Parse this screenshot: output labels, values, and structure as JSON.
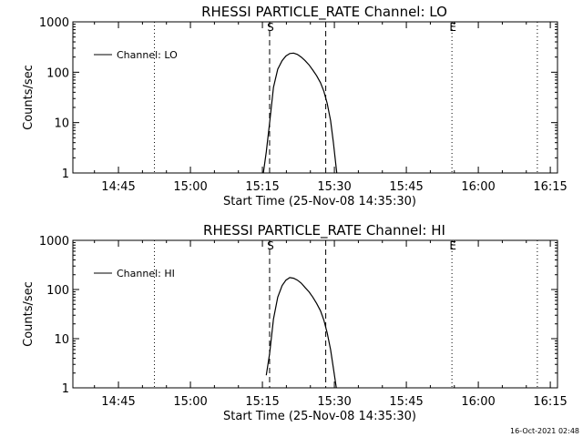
{
  "timestamp": "16-Oct-2021 02:48",
  "chart_data": [
    {
      "type": "line",
      "title": "RHESSI PARTICLE_RATE Channel: LO",
      "xlabel": "Start Time (25-Nov-08 14:35:30)",
      "ylabel": "Counts/sec",
      "yscale": "log",
      "ylim": [
        1,
        1000
      ],
      "xlim_minutes": [
        0,
        101
      ],
      "x_ticks": [
        {
          "label": "14:45",
          "minutes": 9.5
        },
        {
          "label": "15:00",
          "minutes": 24.5
        },
        {
          "label": "15:15",
          "minutes": 39.5
        },
        {
          "label": "15:30",
          "minutes": 54.5
        },
        {
          "label": "15:45",
          "minutes": 69.5
        },
        {
          "label": "16:00",
          "minutes": 84.5
        },
        {
          "label": "16:15",
          "minutes": 99.5
        }
      ],
      "y_ticks": [
        {
          "label": "1",
          "value": 1
        },
        {
          "label": "10",
          "value": 10
        },
        {
          "label": "100",
          "value": 100
        },
        {
          "label": "1000",
          "value": 1000
        }
      ],
      "legend": {
        "label": "Channel: LO",
        "position": "top-left"
      },
      "markers": [
        {
          "label": "S",
          "minutes": 41.0,
          "style": "dashed"
        },
        {
          "label": "",
          "minutes": 52.7,
          "style": "dashed"
        },
        {
          "label": "E",
          "minutes": 79.0,
          "style": "dotted"
        },
        {
          "label": "",
          "minutes": 17.0,
          "style": "dotted"
        },
        {
          "label": "",
          "minutes": 96.8,
          "style": "dotted"
        }
      ],
      "series": [
        {
          "name": "Channel: LO",
          "x_minutes": [
            39.7,
            40.3,
            41.0,
            41.8,
            42.7,
            43.6,
            44.4,
            45.2,
            46.0,
            46.8,
            47.6,
            48.4,
            49.2,
            50.0,
            50.8,
            51.6,
            52.3,
            53.0,
            53.7,
            54.3,
            55.0
          ],
          "values": [
            1.0,
            2.6,
            10.0,
            50,
            115,
            170,
            210,
            235,
            240,
            225,
            200,
            170,
            140,
            110,
            85,
            62,
            42,
            24,
            11,
            4,
            1.0
          ]
        }
      ]
    },
    {
      "type": "line",
      "title": "RHESSI PARTICLE_RATE Channel: HI",
      "xlabel": "Start Time (25-Nov-08 14:35:30)",
      "ylabel": "Counts/sec",
      "yscale": "log",
      "ylim": [
        1,
        1000
      ],
      "xlim_minutes": [
        0,
        101
      ],
      "x_ticks": [
        {
          "label": "14:45",
          "minutes": 9.5
        },
        {
          "label": "15:00",
          "minutes": 24.5
        },
        {
          "label": "15:15",
          "minutes": 39.5
        },
        {
          "label": "15:30",
          "minutes": 54.5
        },
        {
          "label": "15:45",
          "minutes": 69.5
        },
        {
          "label": "16:00",
          "minutes": 84.5
        },
        {
          "label": "16:15",
          "minutes": 99.5
        }
      ],
      "y_ticks": [
        {
          "label": "1",
          "value": 1
        },
        {
          "label": "10",
          "value": 10
        },
        {
          "label": "100",
          "value": 100
        },
        {
          "label": "1000",
          "value": 1000
        }
      ],
      "legend": {
        "label": "Channel: HI",
        "position": "top-left"
      },
      "markers": [
        {
          "label": "S",
          "minutes": 41.0,
          "style": "dashed"
        },
        {
          "label": "",
          "minutes": 52.7,
          "style": "dashed"
        },
        {
          "label": "E",
          "minutes": 79.0,
          "style": "dotted"
        },
        {
          "label": "",
          "minutes": 17.0,
          "style": "dotted"
        },
        {
          "label": "",
          "minutes": 96.8,
          "style": "dotted"
        }
      ],
      "series": [
        {
          "name": "Channel: HI",
          "x_minutes": [
            40.3,
            41.0,
            41.8,
            42.7,
            43.6,
            44.4,
            45.2,
            46.0,
            46.8,
            47.6,
            48.4,
            49.2,
            50.0,
            50.8,
            51.6,
            52.3,
            53.0,
            53.7,
            54.3,
            54.9
          ],
          "values": [
            1.8,
            5,
            25,
            70,
            120,
            155,
            175,
            170,
            155,
            135,
            110,
            90,
            70,
            52,
            37,
            24,
            13,
            6,
            2.5,
            1.0
          ]
        }
      ]
    }
  ]
}
